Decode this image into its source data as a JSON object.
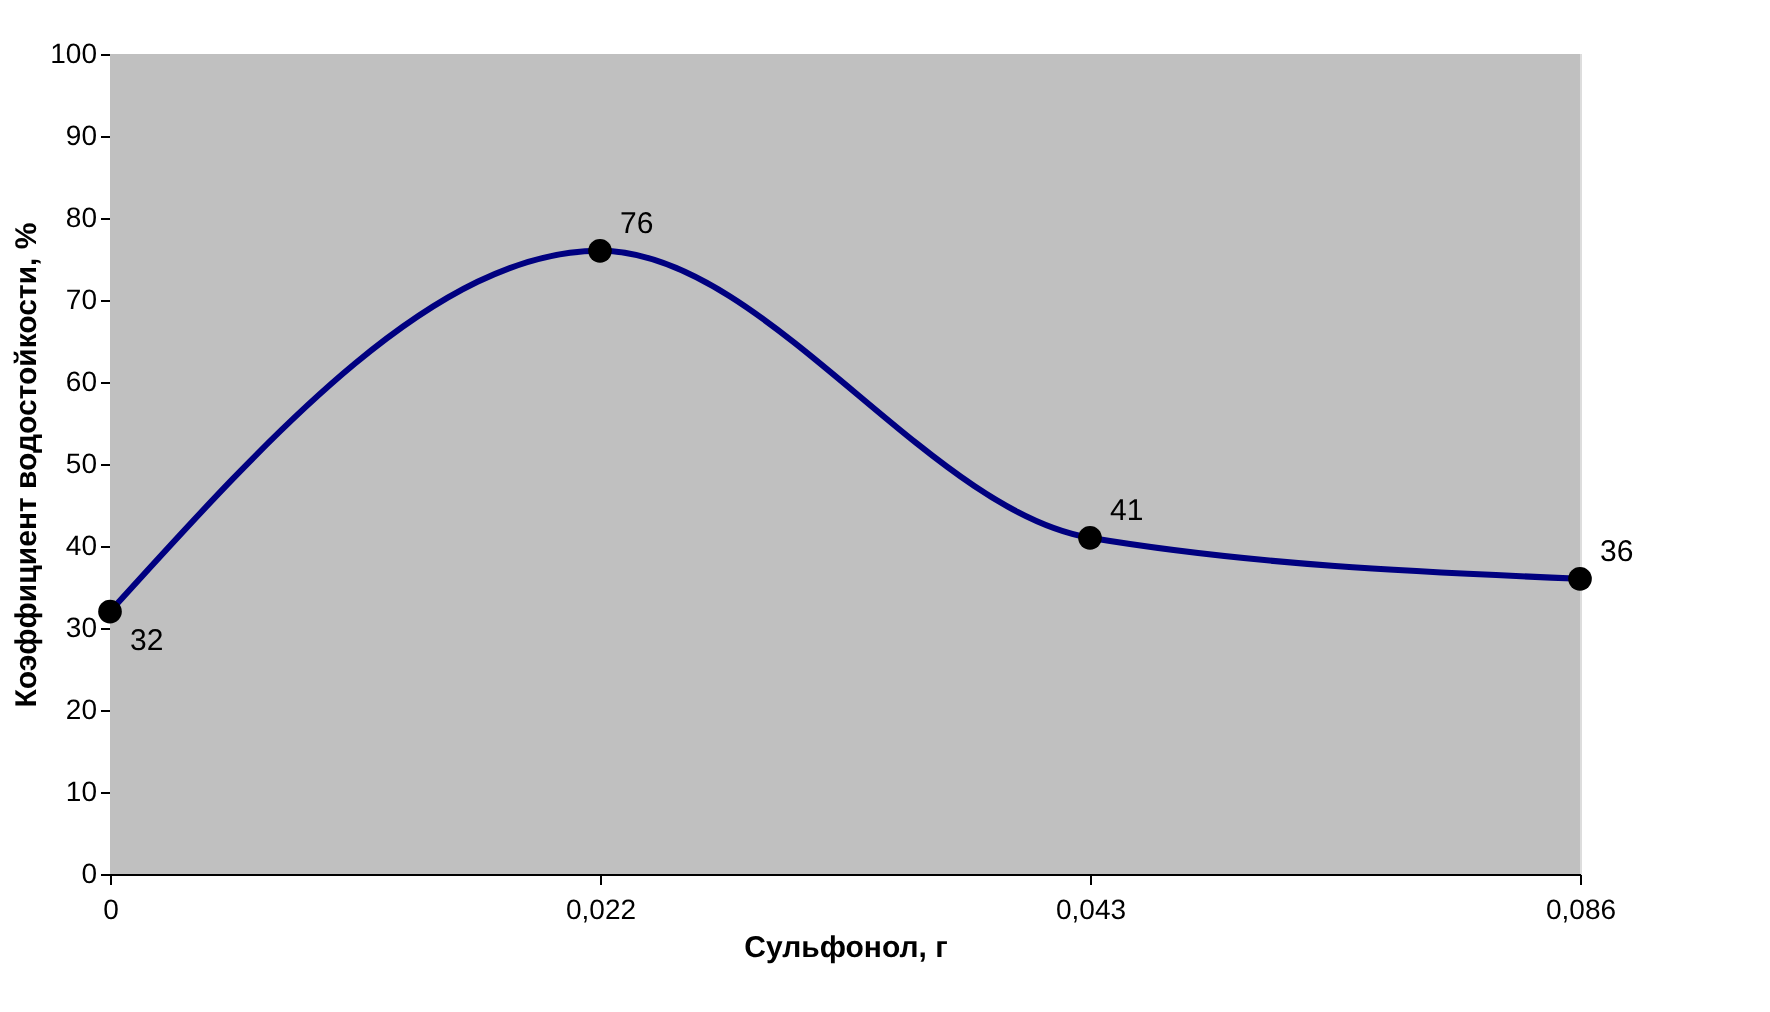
{
  "chart_data": {
    "type": "line",
    "xlabel": "Сульфонол, г",
    "ylabel": "Коэффициент водостойкости, %",
    "categories": [
      "0",
      "0,022",
      "0,043",
      "0,086"
    ],
    "series": [
      {
        "color": "#000080",
        "values": [
          32,
          76,
          41,
          36
        ]
      }
    ],
    "ylim": [
      0,
      100
    ],
    "yticks": [
      0,
      10,
      20,
      30,
      40,
      50,
      60,
      70,
      80,
      90,
      100
    ],
    "data_labels": true,
    "marker": "circle",
    "line_style": "solid"
  }
}
